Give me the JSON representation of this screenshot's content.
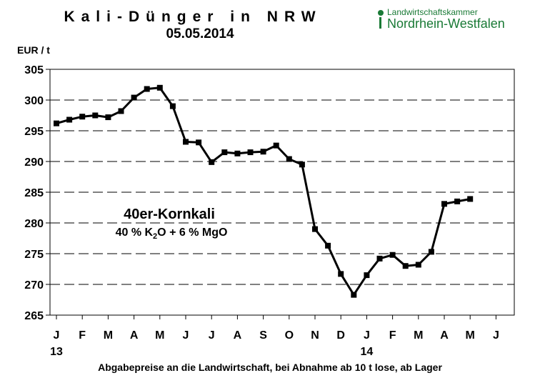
{
  "chart_data": {
    "type": "line",
    "title": "Kali-Dünger in NRW",
    "subtitle": "05.05.2014",
    "ylabel": "EUR / t",
    "xlabel": "Abgabepreise an die Landwirtschaft, bei Abnahme ab 10 t lose, ab Lager",
    "ylim": [
      265,
      305
    ],
    "yticks": [
      305,
      300,
      295,
      290,
      285,
      280,
      275,
      270,
      265
    ],
    "month_labels": [
      "J",
      "F",
      "M",
      "A",
      "M",
      "J",
      "J",
      "A",
      "S",
      "O",
      "N",
      "D",
      "J",
      "F",
      "M",
      "A",
      "M",
      "J"
    ],
    "year_labels": [
      {
        "label": "13",
        "month_index": 0
      },
      {
        "label": "14",
        "month_index": 12
      }
    ],
    "grid": "horizontal dashed",
    "series": [
      {
        "name": "40er-Kornkali",
        "x": [
          0,
          0.5,
          1,
          1.5,
          2,
          2.5,
          3,
          3.5,
          4,
          4.5,
          5,
          5.5,
          6,
          6.5,
          7,
          7.5,
          8,
          8.5,
          9,
          9.5,
          10,
          10.5,
          11,
          11.5,
          12,
          12.5,
          13,
          13.5,
          14,
          14.5,
          15,
          15.5,
          16
        ],
        "values": [
          296.2,
          296.8,
          297.3,
          297.5,
          297.2,
          298.2,
          300.4,
          301.8,
          302.0,
          299.0,
          293.2,
          293.1,
          289.9,
          291.5,
          291.3,
          291.5,
          291.6,
          292.6,
          290.4,
          289.5,
          279.0,
          276.3,
          271.7,
          268.3,
          271.5,
          274.2,
          274.8,
          273.0,
          273.2,
          275.3,
          283.1,
          283.5,
          283.9
        ]
      }
    ],
    "annotation": {
      "name": "40er-Kornkali",
      "formula_pre": "40 %  K",
      "formula_sub": "2",
      "formula_post": "O + 6 % MgO"
    }
  },
  "logo": {
    "line1": "Landwirtschaftskammer",
    "line2": "Nordrhein-Westfalen",
    "color": "#1a7a36"
  }
}
